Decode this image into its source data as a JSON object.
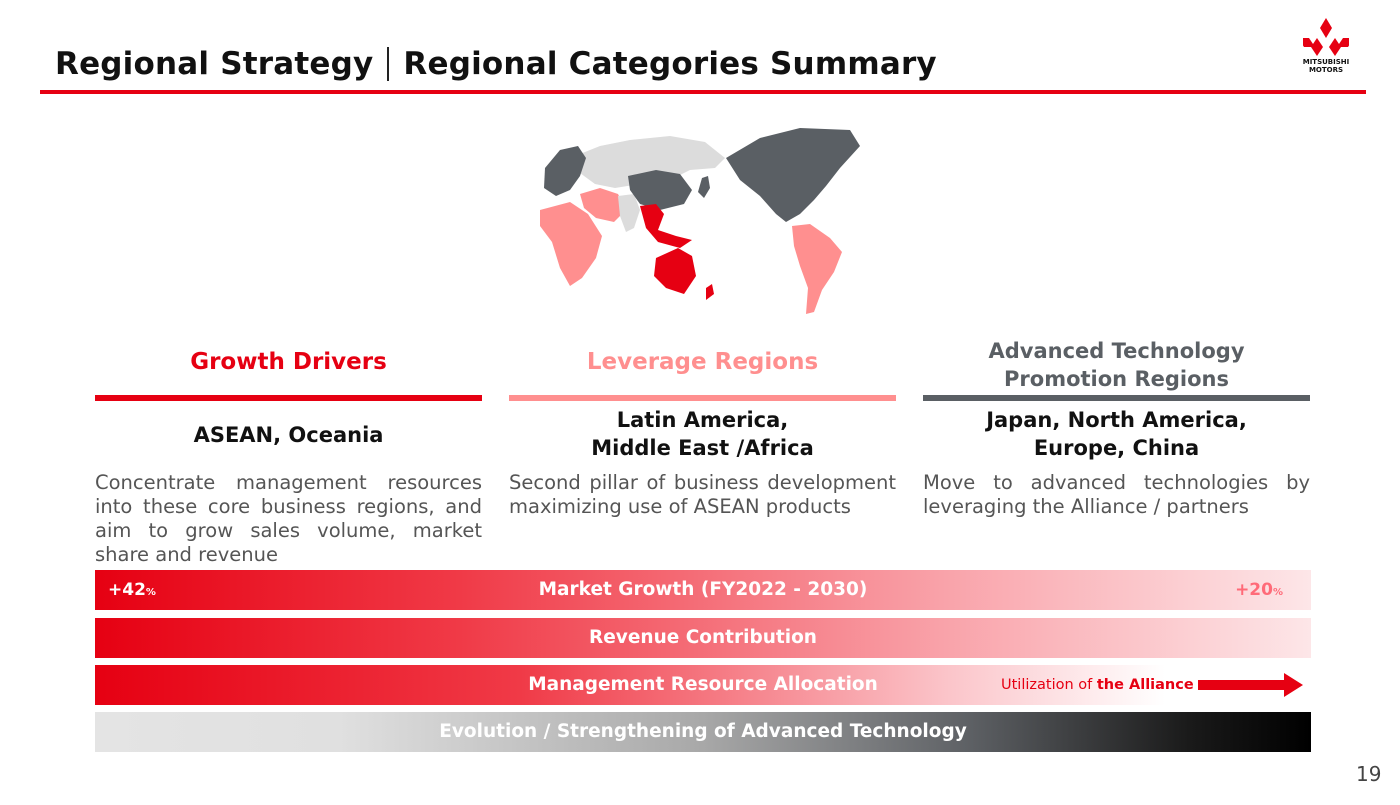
{
  "header": {
    "title_left": "Regional Strategy",
    "title_right": "Regional Categories Summary",
    "accent_color": "#e60012"
  },
  "logo": {
    "line1": "MITSUBISHI",
    "line2": "MOTORS",
    "icon": "three-diamonds-icon"
  },
  "map": {
    "icon": "world-map",
    "colors": {
      "growth": "#e60012",
      "leverage": "#ff8f8f",
      "advanced": "#5a5f64",
      "other": "#dcdcdc"
    }
  },
  "categories": [
    {
      "heading": "Growth Drivers",
      "color": "#e60012",
      "regions": "ASEAN, Oceania",
      "description": "Concentrate management resources into these core business regions, and aim to grow sales volume, market share and revenue"
    },
    {
      "heading": "Leverage Regions",
      "color": "#ff8f8f",
      "regions_line1": "Latin America,",
      "regions_line2": "Middle East /Africa",
      "description": "Second pillar of business development maximizing use of ASEAN products"
    },
    {
      "heading_line1": "Advanced Technology",
      "heading_line2": "Promotion Regions",
      "color": "#5a5f64",
      "regions_line1": "Japan, North America,",
      "regions_line2": "Europe, China",
      "description": "Move to advanced technologies by leveraging the Alliance / partners"
    }
  ],
  "bars": {
    "market_growth": {
      "label": "Market Growth (FY2022 - 2030)",
      "left_value": "+42",
      "right_value": "+20",
      "unit": "%"
    },
    "revenue": {
      "label": "Revenue Contribution"
    },
    "management": {
      "label": "Management Resource Allocation",
      "note_prefix": "Utilization of ",
      "note_bold": "the Alliance"
    },
    "technology": {
      "label": "Evolution / Strengthening of Advanced Technology"
    }
  },
  "page_number": "19"
}
